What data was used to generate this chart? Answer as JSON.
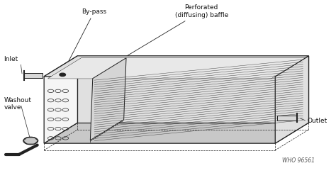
{
  "background_color": "#ffffff",
  "labels": {
    "bypass": "By-pass",
    "perforated": "Perforated\n(diffusing) baffle",
    "inlet": "Inlet",
    "washout": "Washout\nvalve",
    "outlet": "Outlet",
    "who": "WHO 96561"
  },
  "line_color": "#222222",
  "fill_light": "#f5f5f5",
  "fill_mid": "#e0e0e0",
  "fill_dark": "#c8c8c8"
}
